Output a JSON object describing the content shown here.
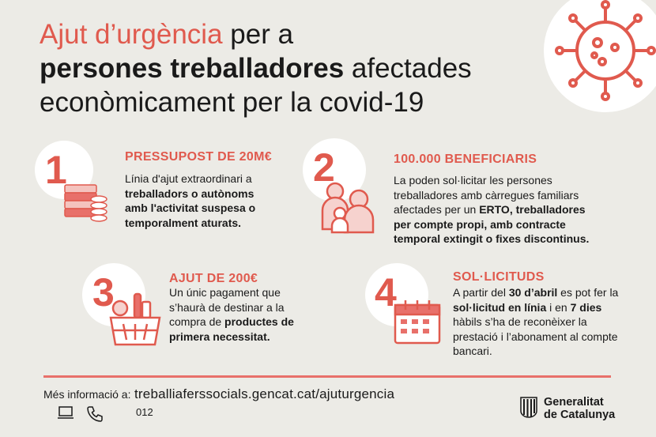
{
  "title": {
    "part1_red": "Ajut d’urgència",
    "part1_rest": " per a",
    "part2_bold": "persones treballadores",
    "part2_rest": " afectades",
    "part3": "econòmicament per la covid-19"
  },
  "sections": [
    {
      "number": "1",
      "heading": "PRESSUPOST DE 20M€",
      "text_a": "Línia d'ajut extraordinari a",
      "text_b": "treballadors o autònoms",
      "text_c": "amb l'activitat suspesa o",
      "text_d": "temporalment aturats.",
      "icon": "money-coins-icon"
    },
    {
      "number": "2",
      "heading": "100.000 BENEFICIARIS",
      "text_a": "La poden sol·licitar les persones",
      "text_b": "treballadores amb càrregues familiars",
      "text_c": "afectades per un ",
      "text_c_bold": "ERTO, treballadores",
      "text_d": "per compte propi, amb contracte",
      "text_e": "temporal extingit o fixes discontinus.",
      "icon": "family-icon"
    },
    {
      "number": "3",
      "heading": "AJUT DE 200€",
      "text_a": "Un únic pagament que",
      "text_b": "s’haurà de destinar a la",
      "text_c": "compra de ",
      "text_c_bold": "productes de",
      "text_d": "primera necessitat.",
      "icon": "shopping-basket-icon"
    },
    {
      "number": "4",
      "heading": "SOL·LICITUDS",
      "text_a_pre": "A partir del ",
      "text_a_bold": "30 d’abril",
      "text_a_post": " es pot fer la",
      "text_b_bold1": "sol·licitud en línia",
      "text_b_mid": " i en ",
      "text_b_bold2": "7 dies",
      "text_c": "hàbils s’ha de reconèixer la",
      "text_d": "prestació i l’abonament al compte",
      "text_e": "bancari.",
      "icon": "calendar-icon"
    }
  ],
  "footer": {
    "label": "Més informació a:",
    "url": "treballiaferssocials.gencat.cat/ajuturgencia",
    "phone": "012",
    "brand_line1": "Generalitat",
    "brand_line2": "de Catalunya"
  },
  "colors": {
    "accent": "#e05a4e",
    "background": "#ecebe6"
  }
}
